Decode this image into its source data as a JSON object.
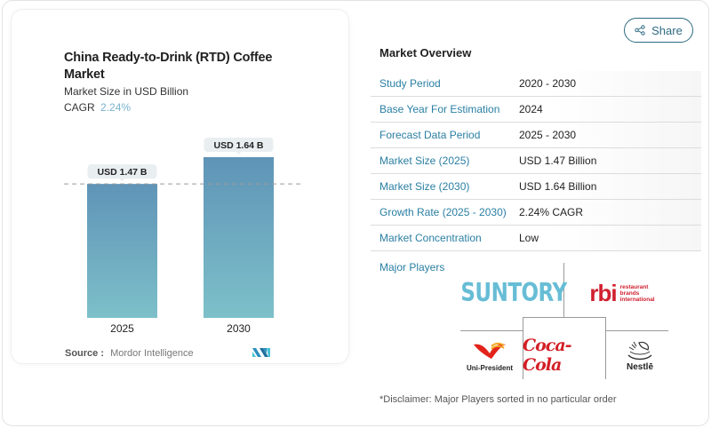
{
  "chart_card": {
    "title": "China Ready-to-Drink (RTD) Coffee Market",
    "subtitle": "Market Size in USD Billion",
    "cagr_label": "CAGR",
    "cagr_value": "2.24%",
    "source_label": "Source :",
    "source_value": "Mordor Intelligence",
    "logo": "mordor-intelligence-logo"
  },
  "chart_data": {
    "type": "bar",
    "title": "China Ready-to-Drink (RTD) Coffee Market",
    "subtitle": "Market Size in USD Billion",
    "categories": [
      "2025",
      "2030"
    ],
    "values": [
      1.47,
      1.64
    ],
    "data_labels": [
      "USD 1.47 B",
      "USD 1.64 B"
    ],
    "xlabel": "",
    "ylabel": "Market Size in USD Billion",
    "ylim": [
      0,
      1.64
    ],
    "reference_line": 1.47,
    "grid": false,
    "colors": {
      "bar_top": "#5f94b7",
      "bar_bottom": "#7dc0c9",
      "label_bg": "#e9eef1"
    }
  },
  "share": {
    "label": "Share",
    "icon": "share-icon"
  },
  "overview": {
    "title": "Market Overview",
    "rows": [
      {
        "label": "Study Period",
        "value": "2020 - 2030"
      },
      {
        "label": "Base Year For Estimation",
        "value": "2024"
      },
      {
        "label": "Forecast Data Period",
        "value": "2025 - 2030"
      },
      {
        "label": "Market Size (2025)",
        "value": "USD 1.47 Billion"
      },
      {
        "label": "Market Size (2030)",
        "value": "USD 1.64 Billion"
      },
      {
        "label": "Growth Rate (2025 - 2030)",
        "value": "2.24% CAGR"
      },
      {
        "label": "Market Concentration",
        "value": "Low"
      }
    ],
    "players_label": "Major Players",
    "players": {
      "suntory": "SUNTORY",
      "rbi_mark": "rbi",
      "rbi_text": [
        "restaurant",
        "brands",
        "international"
      ],
      "unipresident": "Uni-President",
      "cocacola": "Coca-Cola",
      "nestle": "Nestlē"
    },
    "disclaimer": "*Disclaimer: Major Players sorted in no particular order"
  },
  "colors": {
    "accent": "#2a7fa3",
    "share_border": "#2e6b82",
    "cagr": "#7ab3cf",
    "suntory": "#67bdd5",
    "rbi": "#d0202f",
    "cocacola": "#d31f26"
  }
}
